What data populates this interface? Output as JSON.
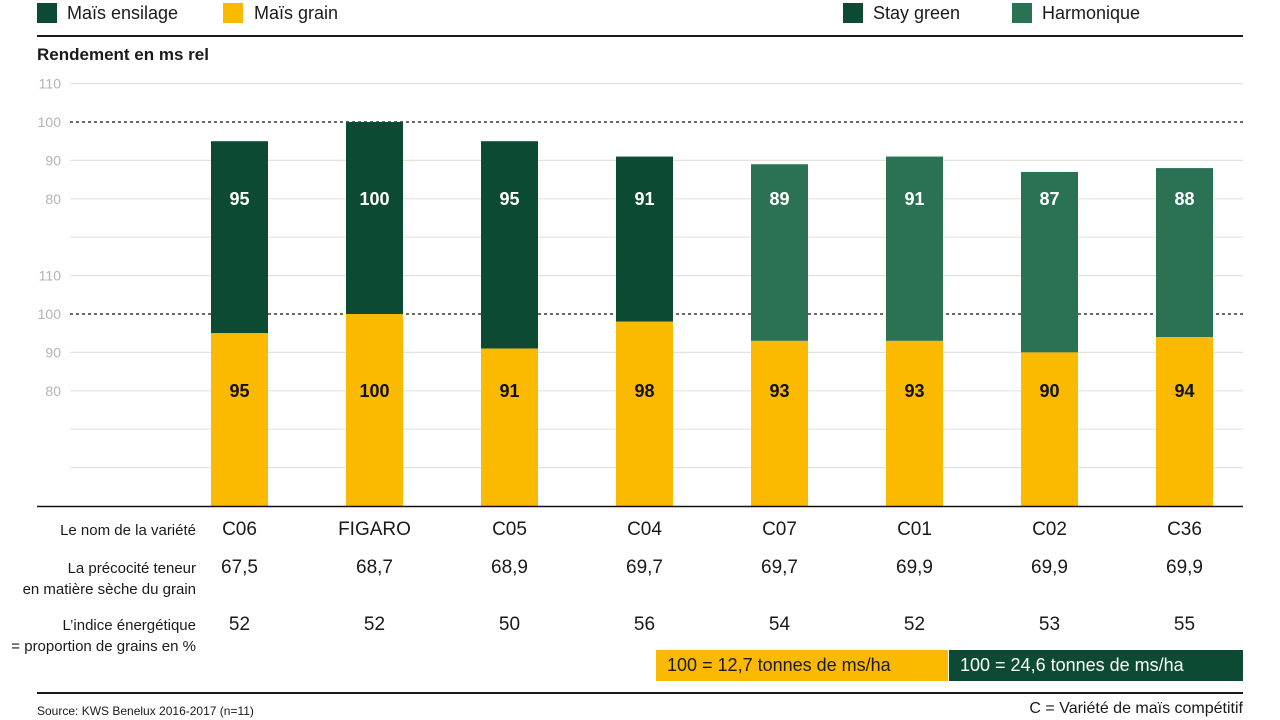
{
  "chart_data": {
    "type": "bar",
    "ylabel": "Rendement en ms rel",
    "legend_position": "top",
    "grid": true,
    "reference_line": 100,
    "categories": [
      "C06",
      "FIGARO",
      "C05",
      "C04",
      "C07",
      "C01",
      "C02",
      "C36"
    ],
    "series": [
      {
        "name": "Maïs ensilage",
        "color": "#0c4a33",
        "values": [
          95,
          100,
          95,
          91,
          89,
          91,
          87,
          88
        ]
      },
      {
        "name": "Maïs grain",
        "color": "#fbb900",
        "values": [
          95,
          100,
          91,
          98,
          93,
          93,
          90,
          94
        ]
      }
    ],
    "variety_types": [
      {
        "name": "Stay green",
        "color": "#0c4a33",
        "categories": [
          "C06",
          "FIGARO",
          "C05",
          "C04"
        ]
      },
      {
        "name": "Harmonique",
        "color": "#2a7253",
        "categories": [
          "C07",
          "C01",
          "C02",
          "C36"
        ]
      }
    ],
    "panels": [
      {
        "series_index": 0,
        "ylim": [
          70,
          110
        ],
        "yticks": [
          80,
          90,
          100,
          110
        ],
        "gridlines": [
          70,
          80,
          90,
          100,
          110
        ]
      },
      {
        "series_index": 1,
        "ylim": [
          50,
          110
        ],
        "yticks": [
          80,
          90,
          100,
          110
        ],
        "gridlines": [
          60,
          70,
          80,
          90,
          100,
          110
        ]
      }
    ]
  },
  "table": {
    "rows": [
      {
        "label_lines": [
          "Le nom de la variété"
        ]
      },
      {
        "label_lines": [
          "La précocité teneur",
          "en matière sèche du grain"
        ],
        "values": [
          "67,5",
          "68,7",
          "68,9",
          "69,7",
          "69,7",
          "69,9",
          "69,9",
          "69,9"
        ]
      },
      {
        "label_lines": [
          "L’indice énergétique",
          "= proportion de grains en %"
        ],
        "values": [
          "52",
          "52",
          "50",
          "56",
          "54",
          "52",
          "53",
          "55"
        ]
      }
    ]
  },
  "scale_notes": [
    {
      "text": "100 = 12,7 tonnes de ms/ha",
      "color": "#fbb900"
    },
    {
      "text": "100 = 24,6 tonnes de ms/ha",
      "color": "#0c4a33"
    }
  ],
  "footer": {
    "source": "Source: KWS Benelux 2016-2017 (n=11)",
    "note": "C = Variété de maïs compétitif"
  }
}
